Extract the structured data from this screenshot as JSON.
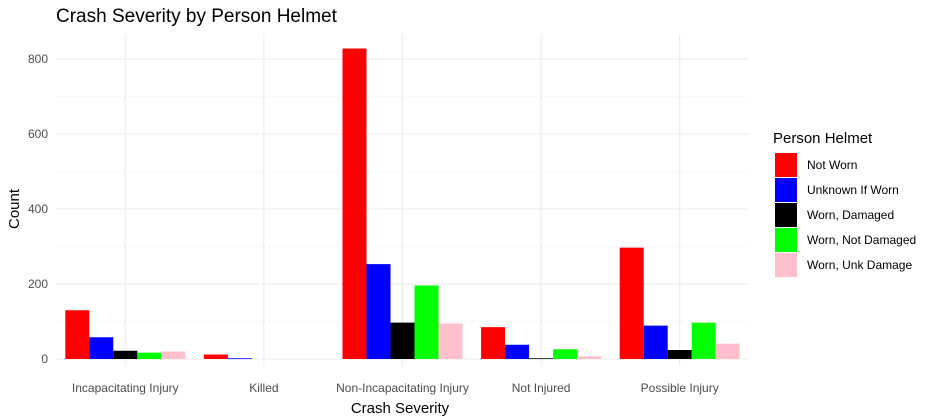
{
  "chart_data": {
    "type": "bar",
    "title": "Crash Severity by Person Helmet",
    "xlabel": "Crash Severity",
    "ylabel": "Count",
    "ylim": [
      0,
      870
    ],
    "yticks": [
      0,
      200,
      400,
      600,
      800
    ],
    "grid": true,
    "legend_title": "Person Helmet",
    "legend_position": "right",
    "categories": [
      "Incapacitating Injury",
      "Killed",
      "Non-Incapacitating Injury",
      "Not Injured",
      "Possible Injury"
    ],
    "series": [
      {
        "name": "Not Worn",
        "color": "#FF0000",
        "values": [
          130,
          12,
          828,
          85,
          297
        ]
      },
      {
        "name": "Unknown If Worn",
        "color": "#0000FF",
        "values": [
          58,
          2,
          253,
          38,
          89
        ]
      },
      {
        "name": "Worn, Damaged",
        "color": "#000000",
        "values": [
          22,
          0,
          97,
          2,
          24
        ]
      },
      {
        "name": "Worn, Not Damaged",
        "color": "#00FF00",
        "values": [
          17,
          0,
          196,
          26,
          97
        ]
      },
      {
        "name": "Worn, Unk Damage",
        "color": "#FFC0CB",
        "values": [
          20,
          0,
          95,
          7,
          41
        ]
      }
    ]
  }
}
